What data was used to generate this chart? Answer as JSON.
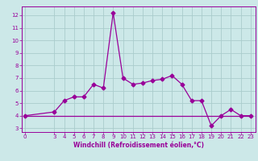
{
  "xlabel": "Windchill (Refroidissement éolien,°C)",
  "background_color": "#cce8e8",
  "grid_color": "#aacccc",
  "line_color": "#990099",
  "x_data": [
    0,
    3,
    4,
    5,
    6,
    7,
    8,
    9,
    10,
    11,
    12,
    13,
    14,
    15,
    16,
    17,
    18,
    19,
    20,
    21,
    22,
    23
  ],
  "y_main": [
    4.0,
    4.3,
    5.2,
    5.5,
    5.5,
    6.5,
    6.2,
    12.2,
    7.0,
    6.5,
    6.6,
    6.8,
    6.9,
    7.2,
    6.5,
    5.2,
    5.2,
    3.2,
    4.0,
    4.5,
    4.0,
    4.0
  ],
  "y_flat": [
    4.0,
    4.0,
    4.0,
    4.0,
    4.0,
    4.0,
    4.0,
    4.0,
    4.0,
    4.0,
    4.0,
    4.0,
    4.0,
    4.0,
    4.0,
    4.0,
    4.0,
    4.0,
    4.0,
    4.0,
    4.0,
    4.0
  ],
  "ylim_min": 2.7,
  "ylim_max": 12.7,
  "yticks": [
    3,
    4,
    5,
    6,
    7,
    8,
    9,
    10,
    11,
    12
  ],
  "xlim_min": -0.3,
  "xlim_max": 23.5,
  "xtick_pos": [
    0,
    3,
    4,
    5,
    6,
    7,
    8,
    9,
    10,
    11,
    12,
    13,
    14,
    15,
    16,
    17,
    18,
    19,
    20,
    21,
    22,
    23
  ],
  "xtick_labels": [
    "0",
    "3",
    "4",
    "5",
    "6",
    "7",
    "8",
    "9",
    "10",
    "11",
    "12",
    "13",
    "14",
    "15",
    "16",
    "17",
    "18",
    "19",
    "20",
    "21",
    "22",
    "23"
  ],
  "ylabel_fontsize": 5.5,
  "xlabel_fontsize": 5.5,
  "tick_fontsize": 5.0,
  "linewidth": 0.9,
  "markersize": 2.5
}
